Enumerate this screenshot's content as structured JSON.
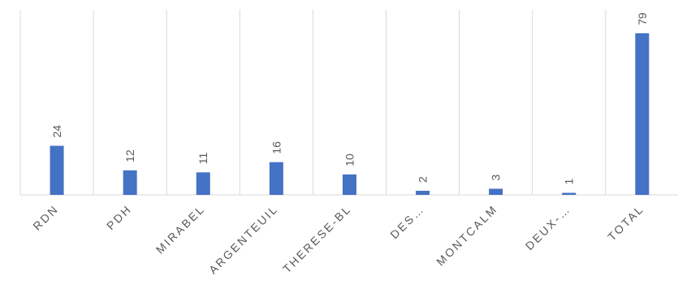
{
  "chart_data": {
    "type": "bar",
    "categories": [
      "RDN",
      "PDH",
      "MIRABEL",
      "ARGENTEUIL",
      "THERESE-BL",
      "DES…",
      "MONTCALM",
      "DEUX-…",
      "TOTAL"
    ],
    "values": [
      24,
      12,
      11,
      16,
      10,
      2,
      3,
      1,
      79
    ],
    "series": [
      {
        "values": [
          24,
          12,
          11,
          16,
          10,
          2,
          3,
          1,
          79
        ],
        "color": "#4472c4"
      }
    ],
    "data_labels": [
      "24",
      "12",
      "11",
      "16",
      "10",
      "2",
      "3",
      "1",
      "79"
    ],
    "title": "",
    "xlabel": "",
    "ylabel": "",
    "ylim": [
      0,
      90
    ],
    "grid": "vertical category separators",
    "legend": "none",
    "colors": {
      "bar": "#4472c4",
      "grid": "#d9d9d9",
      "text": "#595959"
    }
  }
}
